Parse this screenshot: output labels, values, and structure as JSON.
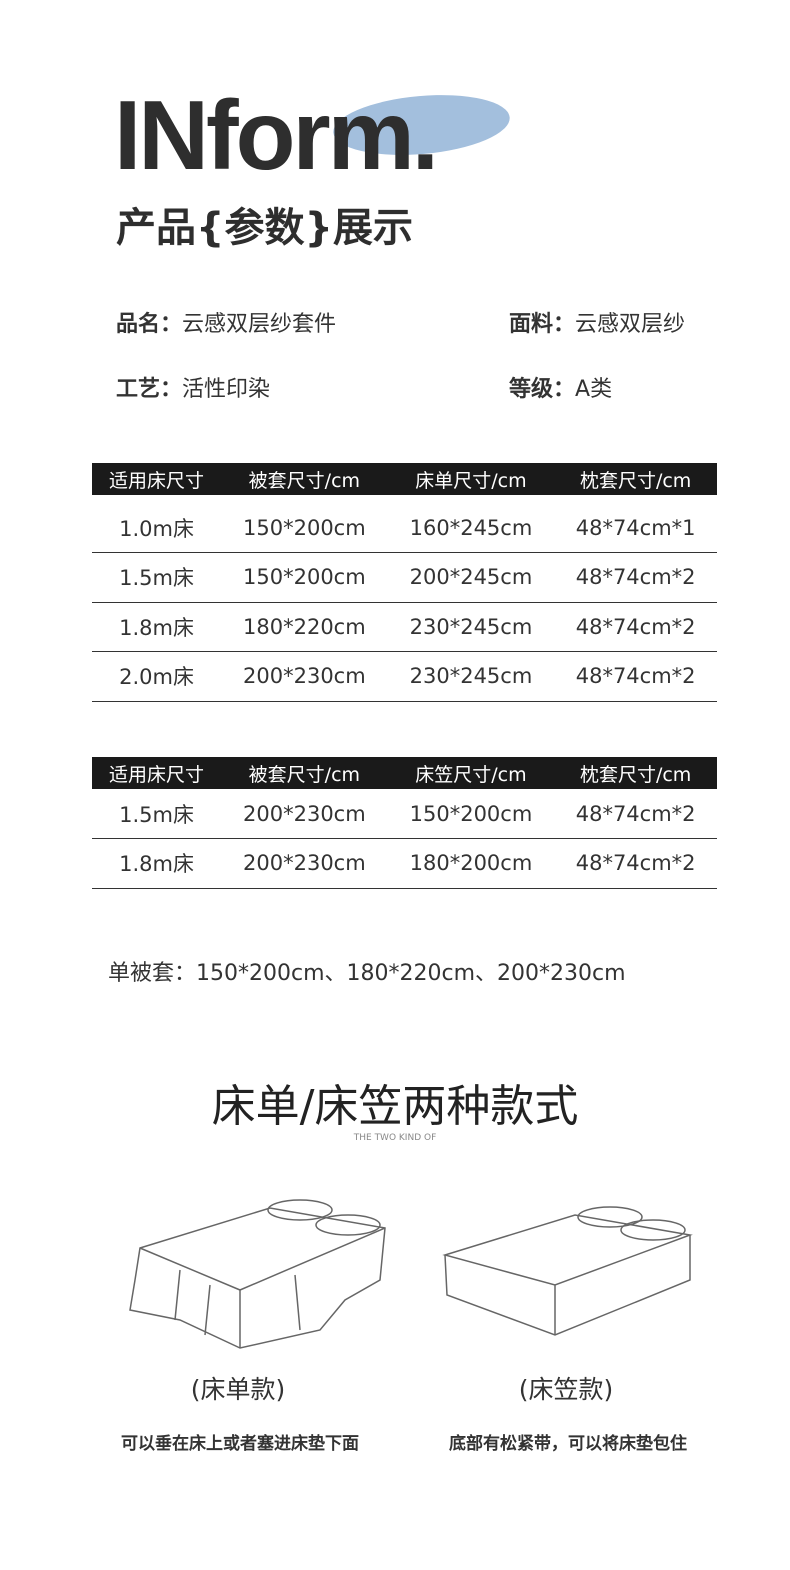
{
  "header": {
    "logo": "INform.",
    "subtitle": "产品{参数}展示",
    "accent_color": "#a3bfdd"
  },
  "specs": [
    {
      "label": "品名：",
      "value": "云感双层纱套件"
    },
    {
      "label": "面料：",
      "value": "云感双层纱"
    },
    {
      "label": "工艺：",
      "value": "活性印染"
    },
    {
      "label": "等级：",
      "value": "A类"
    }
  ],
  "table1": {
    "headers": [
      "适用床尺寸",
      "被套尺寸/cm",
      "床单尺寸/cm",
      "枕套尺寸/cm"
    ],
    "rows": [
      [
        "1.0m床",
        "150*200cm",
        "160*245cm",
        "48*74cm*1"
      ],
      [
        "1.5m床",
        "150*200cm",
        "200*245cm",
        "48*74cm*2"
      ],
      [
        "1.8m床",
        "180*220cm",
        "230*245cm",
        "48*74cm*2"
      ],
      [
        "2.0m床",
        "200*230cm",
        "230*245cm",
        "48*74cm*2"
      ]
    ]
  },
  "table2": {
    "headers": [
      "适用床尺寸",
      "被套尺寸/cm",
      "床笠尺寸/cm",
      "枕套尺寸/cm"
    ],
    "rows": [
      [
        "1.5m床",
        "200*230cm",
        "150*200cm",
        "48*74cm*2"
      ],
      [
        "1.8m床",
        "200*230cm",
        "180*200cm",
        "48*74cm*2"
      ]
    ]
  },
  "single": "单被套：150*200cm、180*220cm、200*230cm",
  "section": {
    "title": "床单/床笠两种款式",
    "subtitle": "THE TWO KIND OF"
  },
  "styles": [
    {
      "caption": "(床单款)",
      "desc": "可以垂在床上或者塞进床垫下面"
    },
    {
      "caption": "(床笠款)",
      "desc": "底部有松紧带，可以将床垫包住"
    }
  ]
}
